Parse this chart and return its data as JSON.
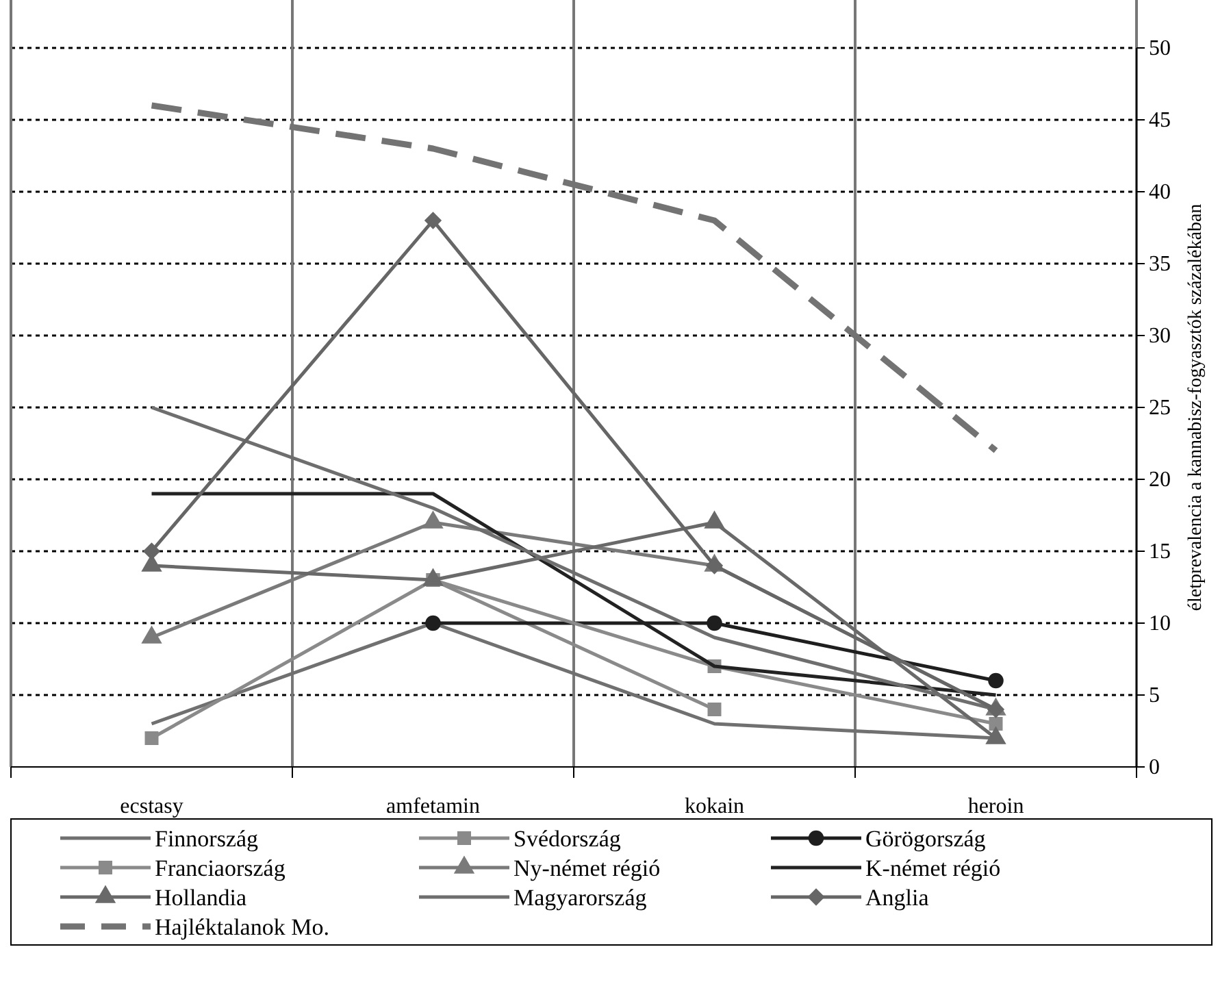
{
  "chart_data": {
    "type": "line",
    "ylabel": "életprevalencia a kannabisz-fogyasztók százalékában",
    "categories": [
      "ecstasy",
      "amfetamin",
      "kokain",
      "heroin"
    ],
    "ylim": [
      0,
      50
    ],
    "yticks": [
      0,
      5,
      10,
      15,
      20,
      25,
      30,
      35,
      40,
      45,
      50
    ],
    "grid": true,
    "legend": "bottom",
    "series": [
      {
        "name": "Finnország",
        "color": "#707070",
        "marker": "none",
        "values": [
          3,
          10,
          3,
          2
        ]
      },
      {
        "name": "Svédország",
        "color": "#8a8a8a",
        "marker": "square",
        "values": [
          2,
          13,
          4,
          null
        ]
      },
      {
        "name": "Görögország",
        "color": "#1e1e1e",
        "marker": "circle",
        "values": [
          null,
          10,
          10,
          6
        ]
      },
      {
        "name": "Franciaország",
        "color": "#8a8a8a",
        "marker": "square",
        "values": [
          null,
          13,
          7,
          3
        ]
      },
      {
        "name": "Ny-német régió",
        "color": "#7a7a7a",
        "marker": "triangle",
        "values": [
          9,
          17,
          14,
          4
        ]
      },
      {
        "name": "K-német régió",
        "color": "#222222",
        "marker": "none",
        "values": [
          19,
          19,
          7,
          5
        ]
      },
      {
        "name": "Hollandia",
        "color": "#696969",
        "marker": "triangle",
        "values": [
          14,
          13,
          17,
          2
        ]
      },
      {
        "name": "Magyarország",
        "color": "#6e6e6e",
        "marker": "none",
        "values": [
          25,
          18,
          9,
          4
        ]
      },
      {
        "name": "Anglia",
        "color": "#666666",
        "marker": "diamond",
        "values": [
          15,
          38,
          14,
          4
        ]
      },
      {
        "name": "Hajléktalanok Mo.",
        "color": "#737373",
        "marker": "none",
        "line_style": "dashed",
        "values": [
          46,
          43,
          38,
          22
        ]
      }
    ]
  }
}
